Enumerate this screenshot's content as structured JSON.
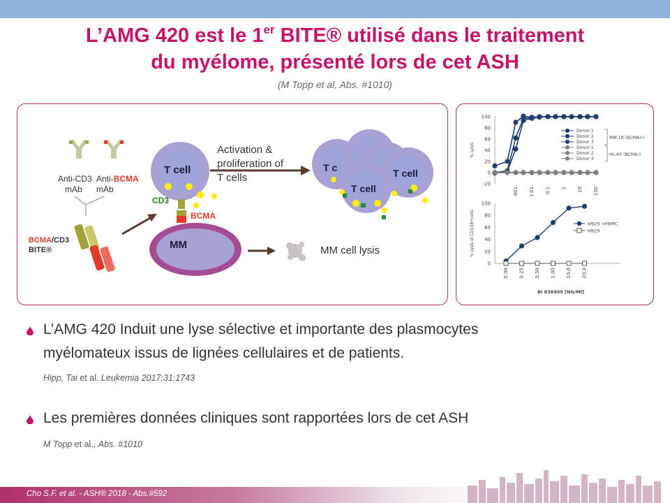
{
  "header": {
    "title_line1_pre": "L’AMG 420 est le 1",
    "title_line1_sup": "er",
    "title_line1_post": " BITE® utilisé dans le traitement",
    "title_line2": "du myélome, présenté lors de cet ASH",
    "subtitle": "(M Topp et al, Abs. #1010)"
  },
  "diagram": {
    "anti_cd3": "Anti-CD3",
    "mab1": "mAb",
    "anti_prefix": "Anti-",
    "bcma_word": "BCMA",
    "mab2": "mAb",
    "bcma_cd3_part1": "BCMA",
    "bcma_cd3_part2": "/CD3",
    "bite": "BITE®",
    "tcell": "T cell",
    "cd3": "CD3",
    "bcma": "BCMA",
    "mm": "MM",
    "activation_line1": "Activation &",
    "activation_line2": "proliferation of",
    "activation_line3": "T cells",
    "mm_lysis": "MM cell lysis",
    "tcell_short": "T c",
    "colors": {
      "tcell_membrane": "#a7a2d3",
      "tcell_body": "#9ea4da",
      "mm_membrane": "#a64c94",
      "bcma_red": "#e23b2e",
      "cd3_olive": "#a3a13a",
      "dot_yellow": "#ffef00"
    }
  },
  "chart_data": [
    {
      "type": "scatter",
      "xscale": "log",
      "x_tick_labels": [
        "0.001",
        "0.01",
        "0.1",
        "1",
        "10",
        "100"
      ],
      "ylabel": "% Lysis",
      "yticks": [
        -20,
        0,
        20,
        40,
        60,
        80,
        100
      ],
      "ylim": [
        -20,
        100
      ],
      "legend_labels": [
        "Donor 1",
        "Donor 2",
        "Donor 3",
        "Donor 1",
        "Donor 2",
        "Donor 3"
      ],
      "group_labels": [
        "MM.1R (BCMA+)",
        "HL-60 (BCMA-)"
      ],
      "series": [
        {
          "name": "Donor 1",
          "group": "MM.1R (BCMA+)",
          "color": "#1f3d70",
          "x": [
            5e-05,
            0.0003,
            0.001,
            0.003,
            0.01,
            0.03,
            0.1,
            0.3,
            1,
            3,
            10,
            30,
            100
          ],
          "values": [
            12,
            20,
            90,
            101,
            99,
            100,
            100,
            100,
            100,
            100,
            100,
            100,
            100
          ]
        },
        {
          "name": "Donor 2",
          "group": "MM.1R (BCMA+)",
          "color": "#1f3d70",
          "x": [
            5e-05,
            0.0003,
            0.001,
            0.003,
            0.01,
            0.03,
            0.1,
            0.3,
            1,
            3,
            10,
            30,
            100
          ],
          "values": [
            0,
            3,
            62,
            97,
            98,
            100,
            100,
            100,
            100,
            100,
            100,
            100,
            100
          ]
        },
        {
          "name": "Donor 3",
          "group": "MM.1R (BCMA+)",
          "color": "#1f3d70",
          "x": [
            5e-05,
            0.0003,
            0.001,
            0.003,
            0.01,
            0.03,
            0.1,
            0.3,
            1,
            3,
            10,
            30,
            100
          ],
          "values": [
            -1,
            2,
            42,
            93,
            97,
            99,
            100,
            100,
            100,
            100,
            100,
            100,
            100
          ]
        },
        {
          "name": "Donor 1",
          "group": "HL-60 (BCMA-)",
          "color": "#7f7f7f",
          "x": [
            5e-05,
            0.0003,
            0.001,
            0.003,
            0.01,
            0.03,
            0.1,
            0.3,
            1,
            3,
            10,
            30,
            100
          ],
          "values": [
            0,
            0,
            0,
            0,
            0,
            0,
            0,
            0,
            0,
            0,
            0,
            0,
            0
          ]
        },
        {
          "name": "Donor 2",
          "group": "HL-60 (BCMA-)",
          "color": "#7f7f7f",
          "x": [
            5e-05,
            0.0003,
            0.001,
            0.003,
            0.01,
            0.03,
            0.1,
            0.3,
            1,
            3,
            10,
            30,
            100
          ],
          "values": [
            0,
            0,
            0,
            0,
            0,
            0,
            0,
            0,
            0,
            0,
            0,
            0,
            0
          ]
        },
        {
          "name": "Donor 3",
          "group": "HL-60 (BCMA-)",
          "color": "#7f7f7f",
          "x": [
            5e-05,
            0.0003,
            0.001,
            0.003,
            0.01,
            0.03,
            0.1,
            0.3,
            1,
            3,
            10,
            30,
            100
          ],
          "values": [
            0,
            0,
            0,
            0,
            0,
            0,
            0,
            0,
            0,
            0,
            0,
            0,
            0
          ]
        }
      ]
    },
    {
      "type": "line",
      "categories": [
        "0.00",
        "0.25",
        "0.50",
        "1.00",
        "10.0",
        "20.0"
      ],
      "xlabel": "BI 836909 [NG/Ml]",
      "ylabel": "% Lysis of CD138+cells",
      "yticks": [
        0,
        20,
        40,
        60,
        80,
        100
      ],
      "ylim": [
        0,
        100
      ],
      "legend": "right",
      "series": [
        {
          "name": "H929 +PBMC",
          "color": "#1f3d70",
          "marker": "filled-circle",
          "x": [
            0.5,
            1,
            1.5,
            2,
            2.5,
            3,
            3.5,
            4,
            4.5
          ],
          "values": [
            4,
            29,
            43,
            68,
            92,
            95,
            null,
            null,
            null
          ]
        },
        {
          "name": "H929",
          "color": "#555555",
          "marker": "open-square",
          "values": [
            0,
            0,
            0,
            0,
            0,
            0
          ]
        }
      ]
    }
  ],
  "bullets": [
    {
      "line1": "L’AMG 420 Induit une lyse sélective et importante des plasmocytes",
      "line2": "myélomateux issus de lignées cellulaires et de patients."
    },
    {
      "line1": "Les premières données cliniques sont rapportées lors de cet ASH"
    }
  ],
  "refs": [
    {
      "authors_italic": "Hipp, Tai",
      "mid": " et al. ",
      "journal": "Leukemia 2017;31:1743"
    },
    {
      "authors_italic": "M Topp",
      "mid": " et al., ",
      "journal": "Abs. #1010"
    }
  ],
  "footer": {
    "text": "Cho S.F. et al. - ASH® 2018 - Abs.#592"
  }
}
